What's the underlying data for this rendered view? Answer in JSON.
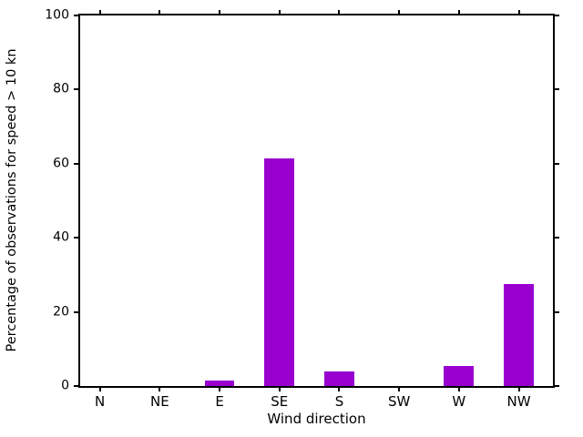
{
  "chart_data": {
    "type": "bar",
    "title": "",
    "xlabel": "Wind direction",
    "ylabel": "Percentage of observations for speed > 10 kn",
    "categories": [
      "N",
      "NE",
      "E",
      "SE",
      "S",
      "SW",
      "W",
      "NW"
    ],
    "values": [
      0,
      0,
      1.5,
      61.5,
      4,
      0,
      5.3,
      27.5
    ],
    "ylim": [
      0,
      100
    ],
    "yticks": [
      0,
      20,
      40,
      60,
      80,
      100
    ],
    "xlim": [
      -0.33,
      7.57
    ],
    "bar_width_data_units": 0.5,
    "bar_color": "#9900d0",
    "axis_color": "#000000",
    "background_color": "#ffffff",
    "grid": false,
    "legend": false,
    "tick_direction": "out",
    "ticks_mirrored_top_right": true
  }
}
